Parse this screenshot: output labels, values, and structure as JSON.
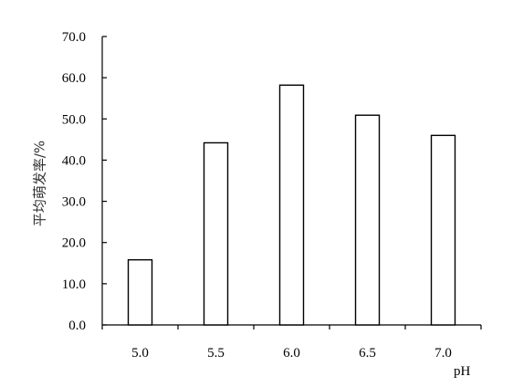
{
  "chart_data": {
    "type": "bar",
    "categories": [
      "5.0",
      "5.5",
      "6.0",
      "6.5",
      "7.0"
    ],
    "values": [
      15.8,
      44.2,
      58.2,
      50.9,
      46.0
    ],
    "title": "",
    "xlabel": "pH",
    "ylabel": "平均萌发率/%",
    "ylim": [
      0,
      70
    ],
    "yticks": [
      "0.0",
      "10.0",
      "20.0",
      "30.0",
      "40.0",
      "50.0",
      "60.0",
      "70.0"
    ],
    "grid": false,
    "legend": "none",
    "colors": {
      "bar_fill": "#ffffff",
      "bar_stroke": "#000000",
      "axis": "#000000"
    }
  }
}
